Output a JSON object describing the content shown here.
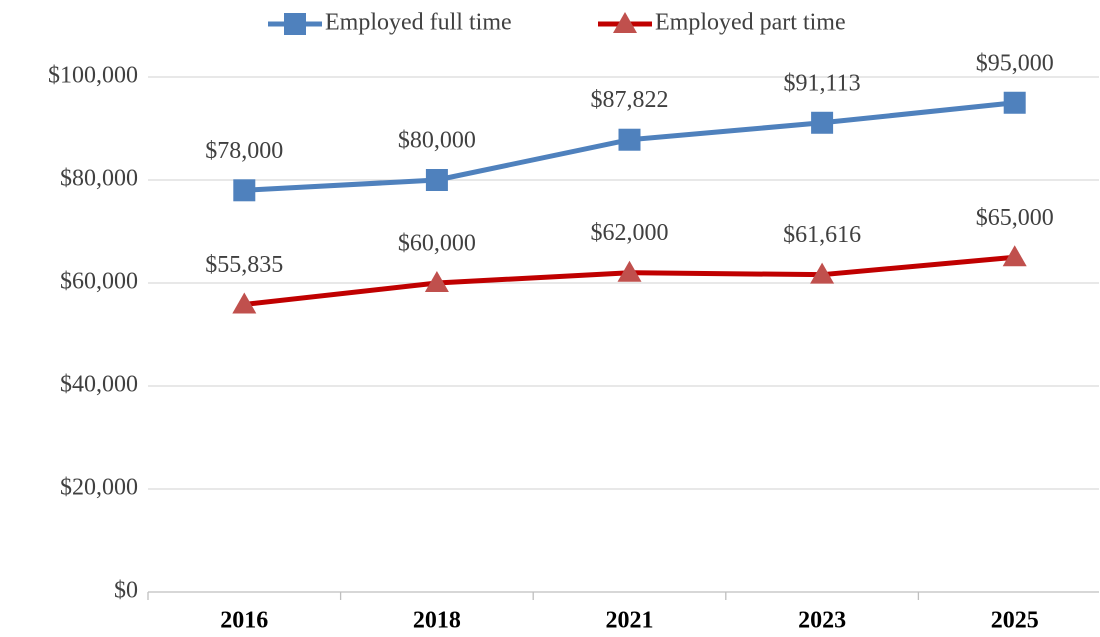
{
  "chart_data": {
    "type": "line",
    "categories": [
      "2016",
      "2018",
      "2021",
      "2023",
      "2025"
    ],
    "series": [
      {
        "name": "Employed full time",
        "color": "#4f81bd",
        "marker": "square",
        "marker_color": "#4f81bd",
        "values": [
          78000,
          80000,
          87822,
          91113,
          95000
        ],
        "value_labels": [
          "$78,000",
          "$80,000",
          "$87,822",
          "$91,113",
          "$95,000"
        ]
      },
      {
        "name": "Employed part time",
        "color": "#c00000",
        "marker": "triangle",
        "marker_color": "#c0504d",
        "values": [
          55835,
          60000,
          62000,
          61616,
          65000
        ],
        "value_labels": [
          "$55,835",
          "$60,000",
          "$62,000",
          "$61,616",
          "$65,000"
        ]
      }
    ],
    "ylim": [
      0,
      100000
    ],
    "yticks": [
      {
        "value": 0,
        "label": "$0"
      },
      {
        "value": 20000,
        "label": "$20,000"
      },
      {
        "value": 40000,
        "label": "$40,000"
      },
      {
        "value": 60000,
        "label": "$60,000"
      },
      {
        "value": 80000,
        "label": "$80,000"
      },
      {
        "value": 100000,
        "label": "$100,000"
      }
    ],
    "grid": true,
    "legend": "top"
  }
}
